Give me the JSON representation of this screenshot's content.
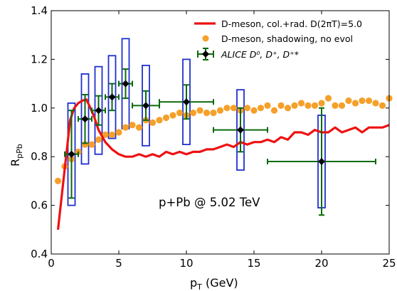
{
  "chart_data": {
    "type": "scatter",
    "xlabel": "p",
    "xlabel_sub": "T",
    "xlabel_unit": " (GeV)",
    "ylabel": "R",
    "ylabel_sub": "pPb",
    "xlim": [
      0,
      25
    ],
    "ylim": [
      0.4,
      1.4
    ],
    "xticks": [
      0,
      5,
      10,
      15,
      20,
      25
    ],
    "yticks": [
      0.4,
      0.6,
      0.8,
      1.0,
      1.2,
      1.4
    ],
    "xtick_labels": [
      "0",
      "5",
      "10",
      "15",
      "20",
      "25"
    ],
    "ytick_labels": [
      "0.4",
      "0.6",
      "0.8",
      "1.0",
      "1.2",
      "1.4"
    ],
    "annotation": "p+Pb @ 5.02 TeV",
    "legend_position": "top-right",
    "series": [
      {
        "name": "D-meson, col.+rad. D(2πT)=5.0",
        "kind": "line",
        "color": "#ee1111",
        "x": [
          0.5,
          0.8,
          1.1,
          1.4,
          1.7,
          2.0,
          2.3,
          2.6,
          2.9,
          3.2,
          3.5,
          4.0,
          4.5,
          5.0,
          5.5,
          6.0,
          6.5,
          7.0,
          7.5,
          8.0,
          8.5,
          9.0,
          9.5,
          10.0,
          10.5,
          11.0,
          11.5,
          12.0,
          12.5,
          13.0,
          13.5,
          14.0,
          14.5,
          15.0,
          15.5,
          16.0,
          16.5,
          17.0,
          17.5,
          18.0,
          18.5,
          19.0,
          19.5,
          20.0,
          20.5,
          21.0,
          21.5,
          22.0,
          22.5,
          23.0,
          23.5,
          24.0,
          24.5,
          25.0
        ],
        "y": [
          0.5,
          0.65,
          0.8,
          0.95,
          1.0,
          1.02,
          1.03,
          1.035,
          1.0,
          0.96,
          0.91,
          0.86,
          0.83,
          0.81,
          0.8,
          0.8,
          0.81,
          0.8,
          0.81,
          0.8,
          0.82,
          0.81,
          0.82,
          0.81,
          0.82,
          0.82,
          0.83,
          0.83,
          0.84,
          0.85,
          0.84,
          0.86,
          0.85,
          0.86,
          0.86,
          0.87,
          0.86,
          0.88,
          0.87,
          0.9,
          0.9,
          0.89,
          0.91,
          0.9,
          0.9,
          0.92,
          0.9,
          0.91,
          0.92,
          0.9,
          0.92,
          0.92,
          0.92,
          0.93
        ]
      },
      {
        "name": "D-meson, shadowing, no evol",
        "kind": "scatter",
        "color": "#f5a02a",
        "x": [
          0.5,
          1.0,
          1.5,
          2.0,
          2.5,
          3.0,
          3.5,
          4.0,
          4.5,
          5.0,
          5.5,
          6.0,
          6.5,
          7.0,
          7.5,
          8.0,
          8.5,
          9.0,
          9.5,
          10.0,
          10.5,
          11.0,
          11.5,
          12.0,
          12.5,
          13.0,
          13.5,
          14.0,
          14.5,
          15.0,
          15.5,
          16.0,
          16.5,
          17.0,
          17.5,
          18.0,
          18.5,
          19.0,
          19.5,
          20.0,
          20.5,
          21.0,
          21.5,
          22.0,
          22.5,
          23.0,
          23.5,
          24.0,
          24.5,
          25.0
        ],
        "y": [
          0.7,
          0.76,
          0.79,
          0.82,
          0.85,
          0.85,
          0.87,
          0.89,
          0.89,
          0.9,
          0.92,
          0.93,
          0.92,
          0.95,
          0.94,
          0.95,
          0.96,
          0.97,
          0.98,
          0.97,
          0.98,
          0.99,
          0.98,
          0.98,
          0.99,
          1.0,
          1.0,
          0.99,
          1.0,
          0.99,
          1.0,
          1.01,
          0.99,
          1.01,
          1.0,
          1.01,
          1.02,
          1.01,
          1.01,
          1.02,
          1.04,
          1.01,
          1.01,
          1.03,
          1.02,
          1.03,
          1.03,
          1.02,
          1.01,
          1.04
        ]
      },
      {
        "name": "ALICE D⁰, D⁺, D⁺*",
        "kind": "errorbar",
        "color": "#0a6a0a",
        "marker_color": "#000000",
        "box_color": "#1f2fd0",
        "points": [
          {
            "x": 1.5,
            "y": 0.81,
            "xerr": 0.5,
            "yerr": 0.18,
            "sys": 0.21
          },
          {
            "x": 2.5,
            "y": 0.955,
            "xerr": 0.5,
            "yerr": 0.1,
            "sys": 0.185
          },
          {
            "x": 3.5,
            "y": 0.99,
            "xerr": 0.5,
            "yerr": 0.06,
            "sys": 0.18
          },
          {
            "x": 4.5,
            "y": 1.045,
            "xerr": 0.5,
            "yerr": 0.055,
            "sys": 0.17
          },
          {
            "x": 5.5,
            "y": 1.1,
            "xerr": 0.5,
            "yerr": 0.06,
            "sys": 0.185
          },
          {
            "x": 7.0,
            "y": 1.01,
            "xerr": 1.0,
            "yerr": 0.06,
            "sys": 0.165
          },
          {
            "x": 10.0,
            "y": 1.025,
            "xerr": 2.0,
            "yerr": 0.07,
            "sys": 0.175
          },
          {
            "x": 14.0,
            "y": 0.91,
            "xerr": 2.0,
            "yerr": 0.09,
            "sys": 0.165
          },
          {
            "x": 20.0,
            "y": 0.78,
            "xerr": 4.0,
            "yerr": 0.22,
            "sys": 0.19
          }
        ]
      }
    ]
  }
}
